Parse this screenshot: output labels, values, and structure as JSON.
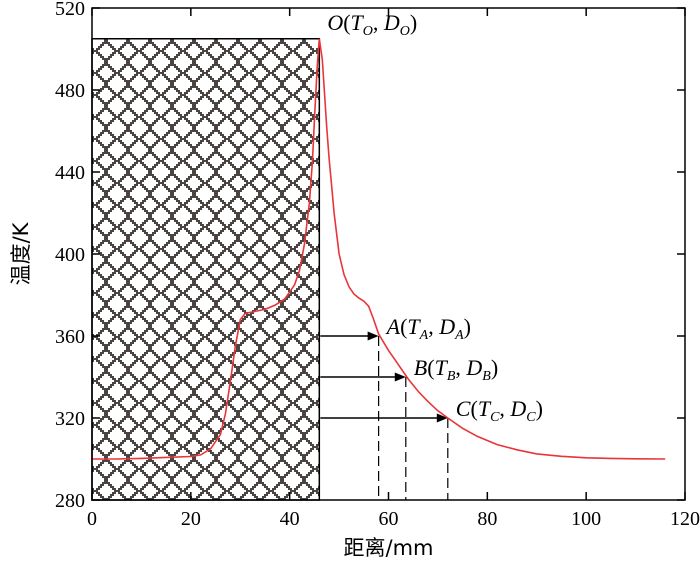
{
  "chart_data": {
    "type": "line",
    "xlabel": "距离/mm",
    "ylabel": "温度/K",
    "xlim": [
      0,
      120
    ],
    "ylim": [
      280,
      520
    ],
    "x_ticks": [
      0,
      20,
      40,
      60,
      80,
      100,
      120
    ],
    "y_ticks": [
      280,
      320,
      360,
      400,
      440,
      480,
      520
    ],
    "grid": false,
    "line_color": "#e8353a",
    "pattern_color": "#4a4442",
    "block_x_range": [
      0,
      46
    ],
    "block_top": 505,
    "series": [
      {
        "points": [
          [
            0,
            300
          ],
          [
            5,
            300
          ],
          [
            10,
            300.3
          ],
          [
            15,
            300.8
          ],
          [
            20,
            301.2
          ],
          [
            22,
            302
          ],
          [
            24,
            305
          ],
          [
            26,
            312
          ],
          [
            27,
            322
          ],
          [
            28,
            338
          ],
          [
            29,
            355
          ],
          [
            30,
            368
          ],
          [
            31,
            371
          ],
          [
            33,
            372
          ],
          [
            35,
            373
          ],
          [
            37,
            375
          ],
          [
            39,
            378
          ],
          [
            41,
            385
          ],
          [
            42,
            392
          ],
          [
            43,
            405
          ],
          [
            44,
            425
          ],
          [
            44.6,
            445
          ],
          [
            45.1,
            470
          ],
          [
            45.6,
            492
          ],
          [
            46,
            505
          ],
          [
            46.6,
            495
          ],
          [
            47,
            480
          ],
          [
            47.5,
            462
          ],
          [
            48,
            446
          ],
          [
            48.5,
            433
          ],
          [
            49,
            420
          ],
          [
            49.5,
            410
          ],
          [
            50,
            400
          ],
          [
            51,
            390
          ],
          [
            52,
            384
          ],
          [
            53,
            380.5
          ],
          [
            54,
            378.5
          ],
          [
            55,
            377
          ],
          [
            56,
            374.5
          ],
          [
            57,
            368
          ],
          [
            58,
            361
          ],
          [
            60,
            353
          ],
          [
            62,
            346
          ],
          [
            64,
            339
          ],
          [
            66,
            333
          ],
          [
            68,
            328
          ],
          [
            70,
            323.5
          ],
          [
            72,
            320
          ],
          [
            75,
            315
          ],
          [
            78,
            311
          ],
          [
            82,
            307
          ],
          [
            86,
            304.5
          ],
          [
            90,
            302.5
          ],
          [
            95,
            301.3
          ],
          [
            100,
            300.6
          ],
          [
            105,
            300.3
          ],
          [
            110,
            300.1
          ],
          [
            116,
            300
          ]
        ]
      }
    ],
    "annotations": [
      {
        "id": "O",
        "label": "O",
        "sub_t": "O",
        "sub_d": "O",
        "x": 46,
        "y": 505
      },
      {
        "id": "A",
        "label": "A",
        "sub_t": "A",
        "sub_d": "A",
        "x": 58,
        "y": 360
      },
      {
        "id": "B",
        "label": "B",
        "sub_t": "B",
        "sub_d": "B",
        "x": 63.5,
        "y": 340
      },
      {
        "id": "C",
        "label": "C",
        "sub_t": "C",
        "sub_d": "C",
        "x": 72,
        "y": 320
      }
    ]
  }
}
